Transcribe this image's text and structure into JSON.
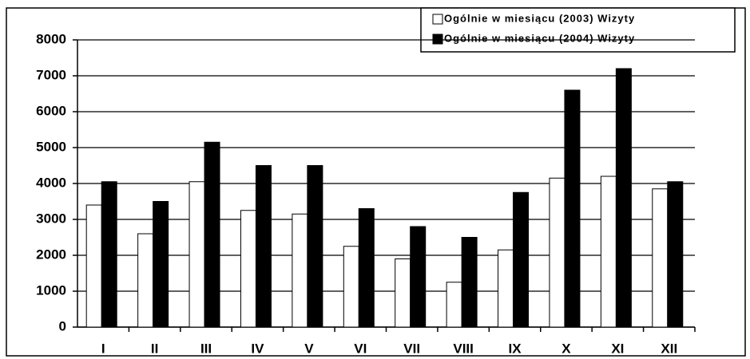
{
  "chart_data": {
    "type": "bar",
    "categories": [
      "I",
      "II",
      "III",
      "IV",
      "V",
      "VI",
      "VII",
      "VIII",
      "IX",
      "X",
      "XI",
      "XII"
    ],
    "series": [
      {
        "name": "Ogólnie w miesiącu (2003) Wizyty",
        "color": "#ffffff",
        "values": [
          3400,
          2600,
          4050,
          3250,
          3150,
          2250,
          1900,
          1250,
          2150,
          4150,
          4200,
          3850
        ]
      },
      {
        "name": "Ogólnie w miesiącu (2004) Wizyty",
        "color": "#000000",
        "values": [
          4050,
          3500,
          5150,
          4500,
          4500,
          3300,
          2800,
          2500,
          3750,
          6600,
          7200,
          4050
        ]
      }
    ],
    "ylim": [
      0,
      8000
    ],
    "yticks": [
      0,
      1000,
      2000,
      3000,
      4000,
      5000,
      6000,
      7000,
      8000
    ],
    "grid": true
  }
}
